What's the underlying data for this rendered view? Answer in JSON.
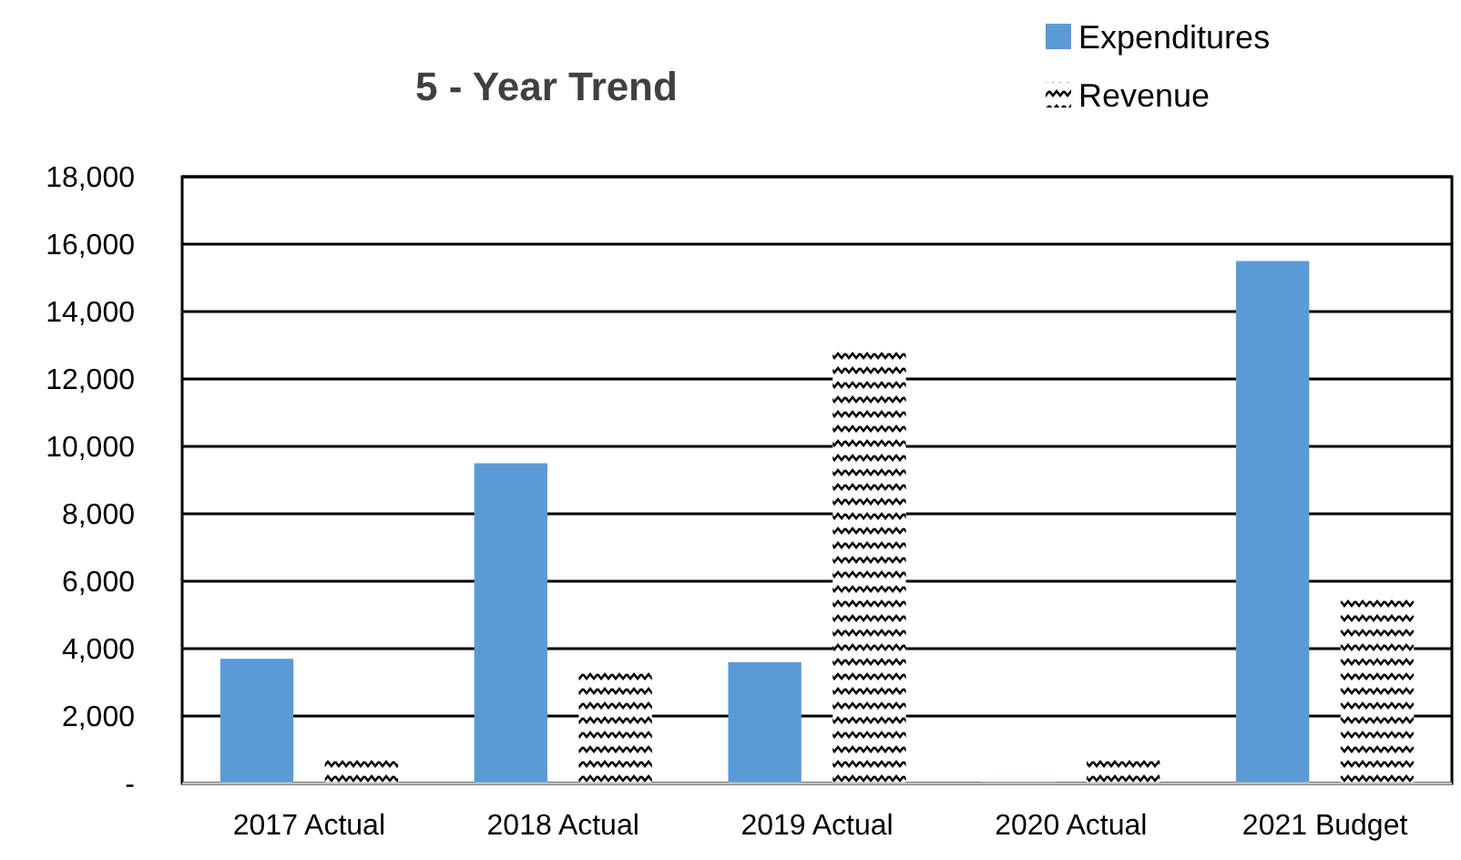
{
  "chart_data": {
    "type": "bar",
    "title": "5 - Year Trend",
    "categories": [
      "2017 Actual",
      "2018 Actual",
      "2019 Actual",
      "2020 Actual",
      "2021 Budget"
    ],
    "series": [
      {
        "name": "Expenditures",
        "color": "#5b9bd5",
        "values": [
          3700,
          9500,
          3600,
          50,
          15500
        ]
      },
      {
        "name": "Revenue",
        "color": "#000000",
        "values": [
          700,
          3300,
          12900,
          700,
          5500
        ]
      }
    ],
    "ylim": [
      0,
      18000
    ],
    "yticks": [
      {
        "value": 0,
        "label": "-"
      },
      {
        "value": 2000,
        "label": "2,000"
      },
      {
        "value": 4000,
        "label": "4,000"
      },
      {
        "value": 6000,
        "label": "6,000"
      },
      {
        "value": 8000,
        "label": "8,000"
      },
      {
        "value": 10000,
        "label": "10,000"
      },
      {
        "value": 12000,
        "label": "12,000"
      },
      {
        "value": 14000,
        "label": "14,000"
      },
      {
        "value": 16000,
        "label": "16,000"
      },
      {
        "value": 18000,
        "label": "18,000"
      }
    ],
    "grid": "y",
    "legend": "top right"
  }
}
